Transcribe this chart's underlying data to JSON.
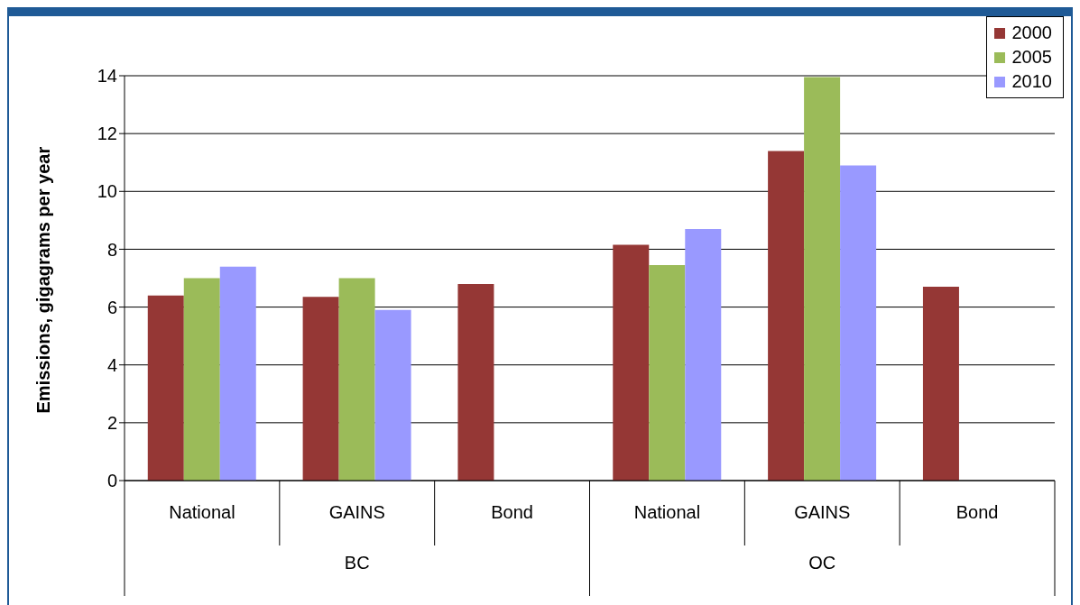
{
  "chart_data": {
    "type": "bar",
    "ylabel": "Emissions, gigagrams per year",
    "categories": [
      "National",
      "GAINS",
      "Bond",
      "National",
      "GAINS",
      "Bond"
    ],
    "annotations": [
      "BC",
      "OC"
    ],
    "series": [
      {
        "name": "2000",
        "color": "#953735",
        "values": [
          6.4,
          6.35,
          6.8,
          8.15,
          11.4,
          6.7
        ]
      },
      {
        "name": "2005",
        "color": "#9bbb59",
        "values": [
          7.0,
          7.0,
          null,
          7.45,
          13.95,
          null
        ]
      },
      {
        "name": "2010",
        "color": "#9999ff",
        "values": [
          7.4,
          5.9,
          null,
          8.7,
          10.9,
          null
        ]
      }
    ],
    "ylim": [
      0,
      14
    ],
    "yticks": [
      0,
      2,
      4,
      6,
      8,
      10,
      12,
      14
    ],
    "grid": "y",
    "legend": "top right"
  }
}
